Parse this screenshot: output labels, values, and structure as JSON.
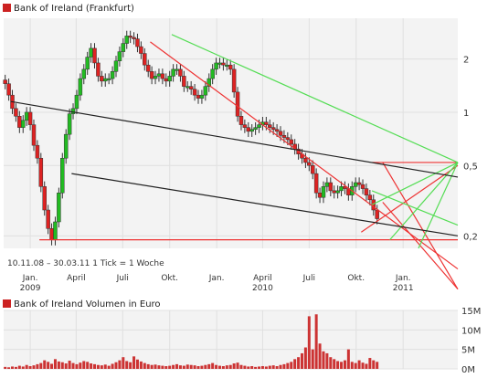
{
  "colors": {
    "up": "#22bb22",
    "down": "#dd2222",
    "wick": "#333333",
    "grid": "#e0e0e0",
    "panel_bg": "#f3f3f3",
    "trend_red": "#ee3333",
    "trend_green": "#55dd55",
    "trend_black": "#222222",
    "volume": "#cc3333",
    "legend_box": "#cc2222"
  },
  "price_panel": {
    "legend": "Bank of Ireland (Frankfurt)",
    "period_note": "10.11.08 – 30.03.11   1 Tick = 1 Woche"
  },
  "volume_panel": {
    "legend": "Bank of Ireland Volumen in Euro"
  },
  "chart_data": [
    {
      "type": "candlestick",
      "title": "Bank of Ireland (Frankfurt)",
      "y_scale": "log",
      "ylim": [
        0.17,
        3.4
      ],
      "y_ticks": [
        {
          "value": 2,
          "label": "2"
        },
        {
          "value": 1,
          "label": "1"
        },
        {
          "value": 0.5,
          "label": "0,5"
        },
        {
          "value": 0.2,
          "label": "0,2"
        }
      ],
      "x_ticks": [
        {
          "date": "2009-01-01",
          "label": "Jan.",
          "year": "2009"
        },
        {
          "date": "2009-04-01",
          "label": "April",
          "year": ""
        },
        {
          "date": "2009-07-01",
          "label": "Juli",
          "year": ""
        },
        {
          "date": "2009-10-01",
          "label": "Okt.",
          "year": ""
        },
        {
          "date": "2010-01-01",
          "label": "Jan.",
          "year": ""
        },
        {
          "date": "2010-04-01",
          "label": "April",
          "year": "2010"
        },
        {
          "date": "2010-07-01",
          "label": "Juli",
          "year": ""
        },
        {
          "date": "2010-10-01",
          "label": "Okt.",
          "year": ""
        },
        {
          "date": "2011-01-01",
          "label": "Jan.",
          "year": "2011"
        }
      ],
      "x_range": [
        "2008-11-10",
        "2011-04-18"
      ],
      "close": [
        1.45,
        1.25,
        1.05,
        0.95,
        0.82,
        0.9,
        1.0,
        0.85,
        0.65,
        0.55,
        0.38,
        0.28,
        0.22,
        0.19,
        0.24,
        0.35,
        0.55,
        0.75,
        0.98,
        1.05,
        1.25,
        1.55,
        1.75,
        2.05,
        2.3,
        1.9,
        1.6,
        1.5,
        1.55,
        1.55,
        1.7,
        1.95,
        2.2,
        2.45,
        2.7,
        2.65,
        2.6,
        2.35,
        2.15,
        1.85,
        1.7,
        1.55,
        1.6,
        1.65,
        1.55,
        1.5,
        1.6,
        1.75,
        1.75,
        1.6,
        1.4,
        1.4,
        1.35,
        1.25,
        1.2,
        1.25,
        1.4,
        1.55,
        1.75,
        1.9,
        1.9,
        1.85,
        1.85,
        1.75,
        1.3,
        0.95,
        0.85,
        0.82,
        0.78,
        0.8,
        0.82,
        0.85,
        0.88,
        0.85,
        0.82,
        0.8,
        0.78,
        0.74,
        0.72,
        0.7,
        0.66,
        0.62,
        0.58,
        0.55,
        0.52,
        0.5,
        0.45,
        0.35,
        0.33,
        0.38,
        0.4,
        0.36,
        0.35,
        0.36,
        0.38,
        0.37,
        0.34,
        0.38,
        0.4,
        0.39,
        0.37,
        0.34,
        0.32,
        0.28,
        0.25
      ],
      "volume_panel": {
        "type": "bar",
        "title": "Bank of Ireland Volumen in Euro",
        "ylim": [
          0,
          15
        ],
        "y_ticks": [
          {
            "value": 15,
            "label": "15M"
          },
          {
            "value": 10,
            "label": "10M"
          },
          {
            "value": 5,
            "label": "5M"
          },
          {
            "value": 0,
            "label": "0M"
          }
        ],
        "volume_millions": [
          0.5,
          0.4,
          0.6,
          0.5,
          0.8,
          0.6,
          1.0,
          0.7,
          0.9,
          1.2,
          1.5,
          2.2,
          1.8,
          1.3,
          2.5,
          1.9,
          1.7,
          1.4,
          2.1,
          1.5,
          1.2,
          1.6,
          2.0,
          1.8,
          1.4,
          1.2,
          1.0,
          0.9,
          1.1,
          0.8,
          1.3,
          1.7,
          2.2,
          3.0,
          2.0,
          1.7,
          3.2,
          2.4,
          1.9,
          1.5,
          1.2,
          1.0,
          1.1,
          0.9,
          0.8,
          0.7,
          0.8,
          1.0,
          1.2,
          0.9,
          0.8,
          1.1,
          1.0,
          0.9,
          0.7,
          0.8,
          1.0,
          1.2,
          1.5,
          1.0,
          0.8,
          0.7,
          0.9,
          1.0,
          1.4,
          1.6,
          1.0,
          0.8,
          0.6,
          0.7,
          0.5,
          0.6,
          0.7,
          0.6,
          0.8,
          0.9,
          0.7,
          1.0,
          1.2,
          1.5,
          1.8,
          2.5,
          3.0,
          4.0,
          5.5,
          13.5,
          5.0,
          14.0,
          6.5,
          4.5,
          4.0,
          3.0,
          2.5,
          2.0,
          1.8,
          2.2,
          5.0,
          1.8,
          1.5,
          2.2,
          1.6,
          1.3,
          2.8,
          2.2,
          1.8
        ]
      },
      "trendlines": [
        {
          "color": "trend_red",
          "points": [
            [
              "2009-08-24",
              2.5
            ],
            [
              "2011-04-18",
              0.13
            ]
          ]
        },
        {
          "color": "trend_red",
          "points": [
            [
              "2010-10-11",
              0.21
            ],
            [
              "2011-04-18",
              0.5
            ]
          ]
        },
        {
          "color": "trend_red",
          "points": [
            [
              "2010-11-01",
              0.52
            ],
            [
              "2011-04-18",
              0.52
            ]
          ]
        },
        {
          "color": "trend_red",
          "points": [
            [
              "2009-01-19",
              0.19
            ],
            [
              "2011-04-18",
              0.19
            ]
          ]
        },
        {
          "color": "trend_red",
          "points": [
            [
              "2010-11-22",
              0.52
            ],
            [
              "2011-04-18",
              0.1
            ]
          ]
        },
        {
          "color": "trend_red",
          "points": [
            [
              "2010-11-22",
              0.31
            ],
            [
              "2011-04-18",
              0.1
            ]
          ]
        },
        {
          "color": "trend_green",
          "points": [
            [
              "2009-10-05",
              2.75
            ],
            [
              "2011-04-18",
              0.52
            ]
          ]
        },
        {
          "color": "trend_green",
          "points": [
            [
              "2010-11-01",
              0.3
            ],
            [
              "2011-04-18",
              0.52
            ]
          ]
        },
        {
          "color": "trend_green",
          "points": [
            [
              "2010-12-06",
              0.19
            ],
            [
              "2011-04-18",
              0.52
            ]
          ]
        },
        {
          "color": "trend_green",
          "points": [
            [
              "2011-01-31",
              0.17
            ],
            [
              "2011-04-18",
              0.52
            ]
          ]
        },
        {
          "color": "trend_green",
          "points": [
            [
              "2010-11-01",
              0.36
            ],
            [
              "2011-04-18",
              0.23
            ]
          ]
        },
        {
          "color": "trend_black",
          "points": [
            [
              "2008-11-24",
              1.15
            ],
            [
              "2011-04-18",
              0.43
            ]
          ]
        },
        {
          "color": "trend_black",
          "points": [
            [
              "2009-03-23",
              0.45
            ],
            [
              "2011-04-18",
              0.2
            ]
          ]
        }
      ]
    }
  ]
}
